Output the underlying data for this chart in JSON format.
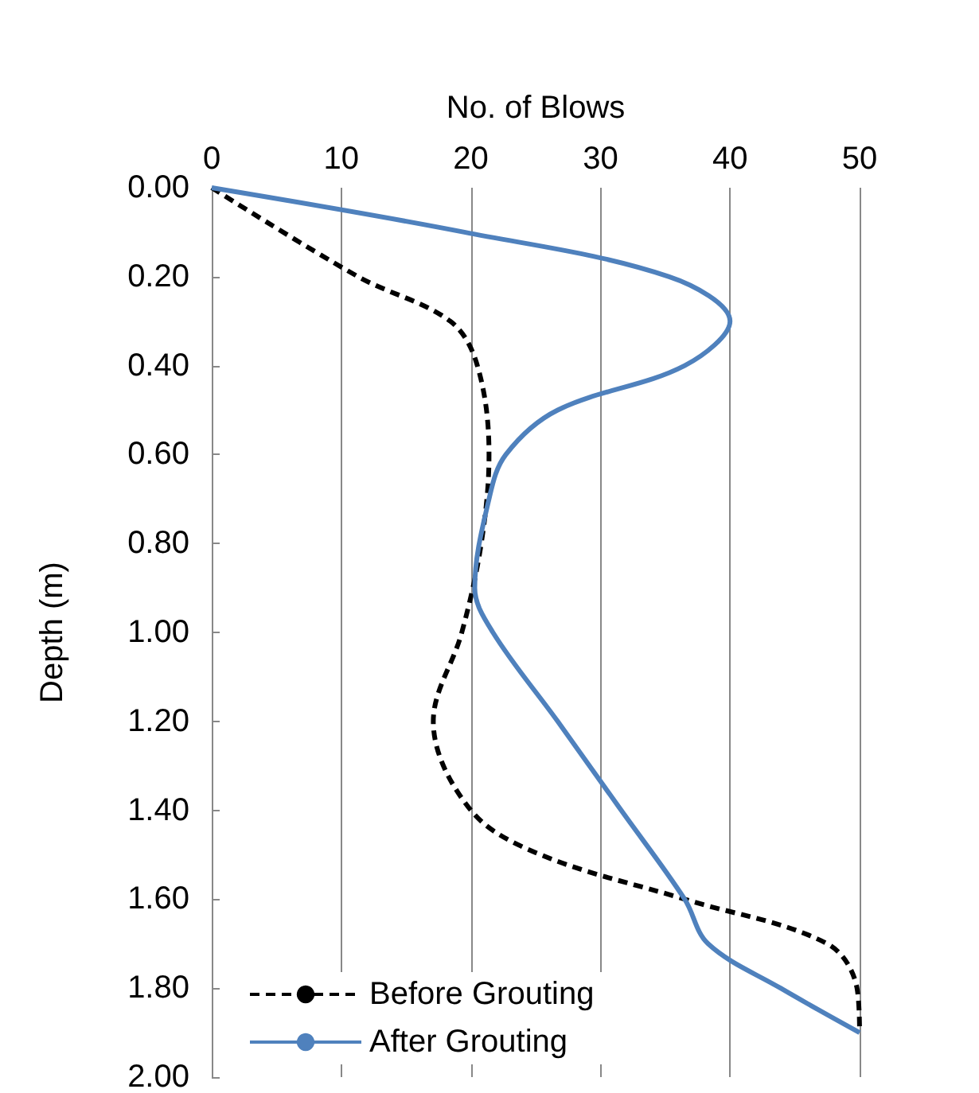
{
  "chart_data": {
    "type": "line",
    "xlabel": "No. of Blows",
    "ylabel": "Depth (m)",
    "xlim": [
      0,
      50
    ],
    "xticks": [
      0,
      10,
      20,
      30,
      40,
      50
    ],
    "ylim": [
      2,
      0
    ],
    "yticks": [
      {
        "value": 0,
        "label": "0.00"
      },
      {
        "value": 0.2,
        "label": "0.20"
      },
      {
        "value": 0.4,
        "label": "0.40"
      },
      {
        "value": 0.6,
        "label": "0.60"
      },
      {
        "value": 0.8,
        "label": "0.80"
      },
      {
        "value": 1,
        "label": "1.00"
      },
      {
        "value": 1.2,
        "label": "1.20"
      },
      {
        "value": 1.4,
        "label": "1.40"
      },
      {
        "value": 1.6,
        "label": "1.60"
      },
      {
        "value": 1.8,
        "label": "1.80"
      },
      {
        "value": 2,
        "label": "2.00"
      }
    ],
    "grid": "x",
    "legend": "bottom left",
    "marker": "none",
    "series": [
      {
        "name": "Before Grouting",
        "color": "#000000",
        "line_style": "dashed",
        "x": [
          0,
          11.3,
          18.4,
          20.5,
          21.4,
          20.8,
          19.3,
          17.1,
          20,
          25.4,
          36.5,
          47.5,
          49.8,
          50
        ],
        "values": [
          0,
          0.2,
          0.3,
          0.4,
          0.6,
          0.8,
          1,
          1.2,
          1.4,
          1.5,
          1.6,
          1.7,
          1.8,
          1.9
        ]
      },
      {
        "name": "After Grouting",
        "color": "#4f81bd",
        "line_style": "solid",
        "x": [
          0,
          19.5,
          35.3,
          40,
          36.5,
          26.7,
          22.7,
          21.4,
          20.3,
          21.7,
          26.7,
          31.6,
          36.5,
          38.3,
          43.9,
          50
        ],
        "values": [
          0,
          0.1,
          0.2,
          0.3,
          0.4,
          0.5,
          0.6,
          0.7,
          0.9,
          1,
          1.2,
          1.4,
          1.6,
          1.7,
          1.8,
          1.9
        ]
      }
    ]
  }
}
